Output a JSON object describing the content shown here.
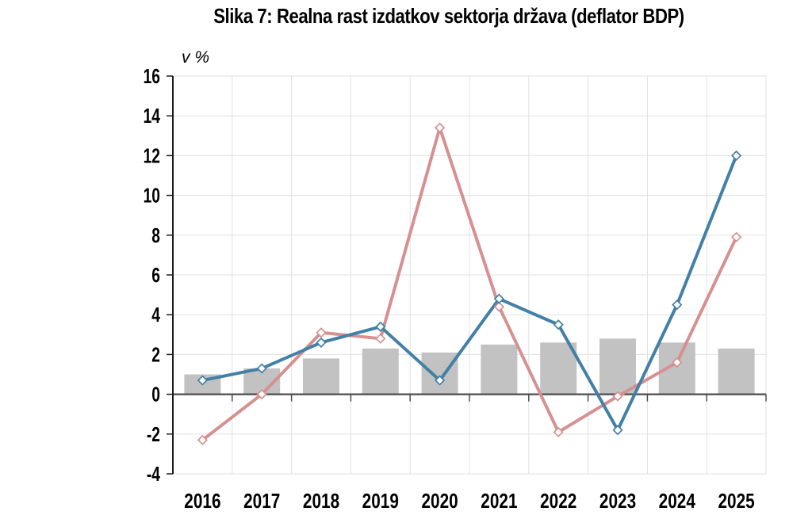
{
  "colors": {
    "bar": "#C2C2C2",
    "line_blue": "#4380A6",
    "line_pink": "#D69090",
    "grid": "#E0E0E0",
    "axis": "#1A1A1A",
    "zero_line": "#4D4D4D",
    "text": "#000000",
    "marker_fill": "#FFFFFF"
  },
  "chart_data": {
    "type": "combo",
    "title": "Slika 7: Realna rast izdatkov sektorja država (deflator BDP)",
    "ylabel": "v %",
    "xlabel": "",
    "categories": [
      "2016",
      "2017",
      "2018",
      "2019",
      "2020",
      "2021",
      "2022",
      "2023",
      "2024",
      "2025"
    ],
    "series": [
      {
        "name": "bars-gray",
        "type": "bar",
        "color": "#C2C2C2",
        "values": [
          1.0,
          1.3,
          1.8,
          2.3,
          2.1,
          2.5,
          2.6,
          2.8,
          2.6,
          2.3
        ]
      },
      {
        "name": "line-pink",
        "type": "line",
        "color": "#D69090",
        "marker": "diamond",
        "values": [
          -2.3,
          0.0,
          3.1,
          2.8,
          13.4,
          4.4,
          -1.9,
          -0.1,
          1.6,
          7.9
        ]
      },
      {
        "name": "line-blue",
        "type": "line",
        "color": "#4380A6",
        "marker": "diamond",
        "values": [
          0.7,
          1.3,
          2.6,
          3.4,
          0.7,
          4.8,
          3.5,
          -1.8,
          4.5,
          12.0
        ]
      }
    ],
    "ylim": [
      -4,
      16
    ],
    "y_ticks": [
      16,
      14,
      12,
      10,
      8,
      6,
      4,
      2,
      0,
      -2,
      -4
    ],
    "grid": true,
    "legend": "none"
  }
}
